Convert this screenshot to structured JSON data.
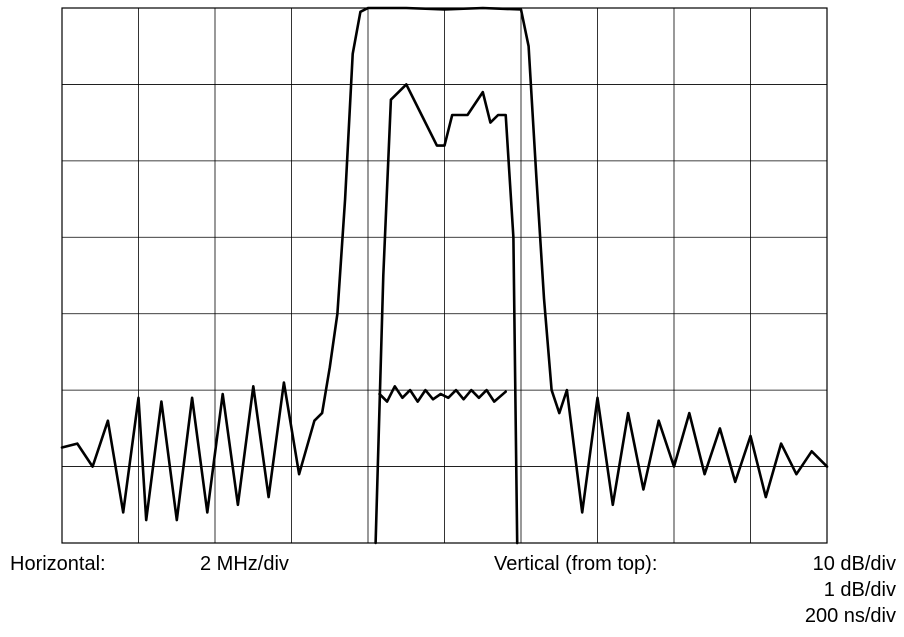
{
  "chart_data": {
    "type": "line",
    "title": "",
    "xlabel": "",
    "ylabel": "",
    "grid": true,
    "x_divisions": 10,
    "y_divisions": 7,
    "xlim": [
      -10,
      10
    ],
    "ylim_div": [
      0,
      7
    ],
    "series": [
      {
        "role": "amplitude response (10 dB/div)",
        "x": [
          -10.0,
          -9.6,
          -9.2,
          -8.8,
          -8.4,
          -8.0,
          -7.8,
          -7.4,
          -7.0,
          -6.6,
          -6.2,
          -5.8,
          -5.4,
          -5.0,
          -4.6,
          -4.2,
          -3.8,
          -3.4,
          -3.2,
          -3.0,
          -2.8,
          -2.6,
          -2.4,
          -2.2,
          -2.0,
          -1.0,
          0.0,
          1.0,
          2.0,
          2.2,
          2.4,
          2.6,
          2.8,
          3.0,
          3.2,
          3.6,
          4.0,
          4.4,
          4.8,
          5.2,
          5.6,
          6.0,
          6.4,
          6.8,
          7.2,
          7.6,
          8.0,
          8.4,
          8.8,
          9.2,
          9.6,
          10.0
        ],
        "y": [
          1.25,
          1.3,
          1.0,
          1.6,
          0.4,
          1.9,
          0.3,
          1.85,
          0.3,
          1.9,
          0.4,
          1.95,
          0.5,
          2.05,
          0.6,
          2.1,
          0.9,
          1.6,
          1.7,
          2.3,
          3.0,
          4.5,
          6.4,
          6.95,
          7.0,
          7.0,
          6.98,
          7.0,
          6.98,
          6.5,
          4.8,
          3.2,
          2.0,
          1.7,
          2.0,
          0.4,
          1.9,
          0.5,
          1.7,
          0.7,
          1.6,
          1.0,
          1.7,
          0.9,
          1.5,
          0.8,
          1.4,
          0.6,
          1.3,
          0.9,
          1.2,
          1.0
        ]
      },
      {
        "role": "passband detail (1 dB/div)",
        "x": [
          -1.8,
          -1.6,
          -1.4,
          -1.0,
          -0.6,
          -0.2,
          0.0,
          0.2,
          0.6,
          1.0,
          1.2,
          1.4,
          1.6,
          1.8,
          1.9
        ],
        "y": [
          0.0,
          3.5,
          5.8,
          6.0,
          5.6,
          5.2,
          5.2,
          5.6,
          5.6,
          5.9,
          5.5,
          5.6,
          5.6,
          4.0,
          0.0
        ]
      },
      {
        "role": "group delay (200 ns/div)",
        "x": [
          -1.7,
          -1.5,
          -1.3,
          -1.1,
          -0.9,
          -0.7,
          -0.5,
          -0.3,
          -0.1,
          0.1,
          0.3,
          0.5,
          0.7,
          0.9,
          1.1,
          1.3,
          1.6
        ],
        "y": [
          1.95,
          1.85,
          2.05,
          1.9,
          2.0,
          1.85,
          2.0,
          1.88,
          1.95,
          1.9,
          2.0,
          1.88,
          2.0,
          1.9,
          2.0,
          1.85,
          1.98
        ]
      }
    ]
  },
  "captions": {
    "horizontal_label": "Horizontal:",
    "horizontal_value": "2 MHz/div",
    "vertical_label": "Vertical (from top):",
    "vertical_values": [
      "10 dB/div",
      "1 dB/div",
      "200 ns/div"
    ]
  }
}
